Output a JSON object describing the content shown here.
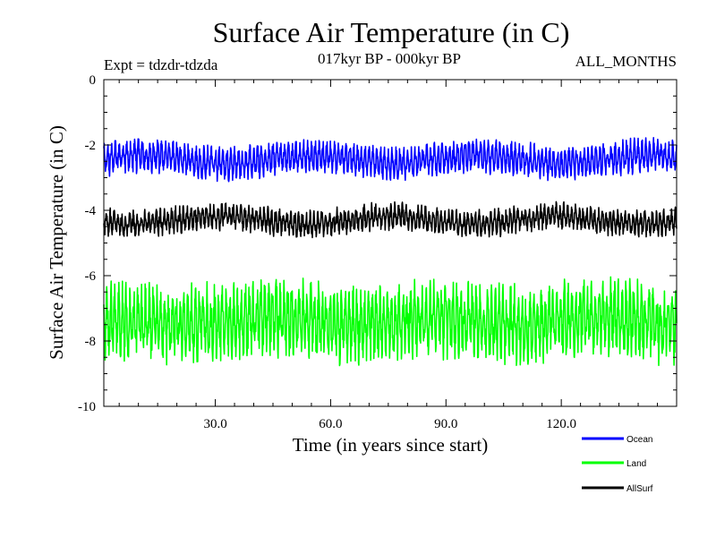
{
  "chart_data": {
    "type": "line",
    "title": "Surface Air Temperature (in C)",
    "subtitle_left": "Expt = tdzdr-tdzda",
    "subtitle_center": "017kyr BP - 000kyr BP",
    "subtitle_right": "ALL_MONTHS",
    "xlabel": "Time (in years since start)",
    "ylabel": "Surface Air Temperature (in C)",
    "xlim": [
      1,
      150
    ],
    "ylim": [
      -10,
      0
    ],
    "xticks": [
      30,
      60,
      90,
      120
    ],
    "xtick_labels": [
      "30.0",
      "60.0",
      "90.0",
      "120.0"
    ],
    "yticks": [
      0,
      -2,
      -4,
      -6,
      -8,
      -10
    ],
    "ytick_labels": [
      "0",
      "-2",
      "-4",
      "-6",
      "-8",
      "-10"
    ],
    "legend_position": "bottom-right, outside plot",
    "series": [
      {
        "name": "Ocean",
        "color": "#0000ff",
        "mean": -2.45,
        "seasonal_amp": 0.35,
        "noise": 0.22,
        "range": [
          -3.25,
          -1.75
        ]
      },
      {
        "name": "Land",
        "color": "#00ff00",
        "mean": -7.4,
        "seasonal_amp": 0.75,
        "noise": 0.55,
        "range": [
          -9.5,
          -5.8
        ]
      },
      {
        "name": "AllSurf",
        "color": "#000000",
        "mean": -4.3,
        "seasonal_amp": 0.25,
        "noise": 0.2,
        "range": [
          -5.3,
          -3.5
        ]
      }
    ]
  }
}
